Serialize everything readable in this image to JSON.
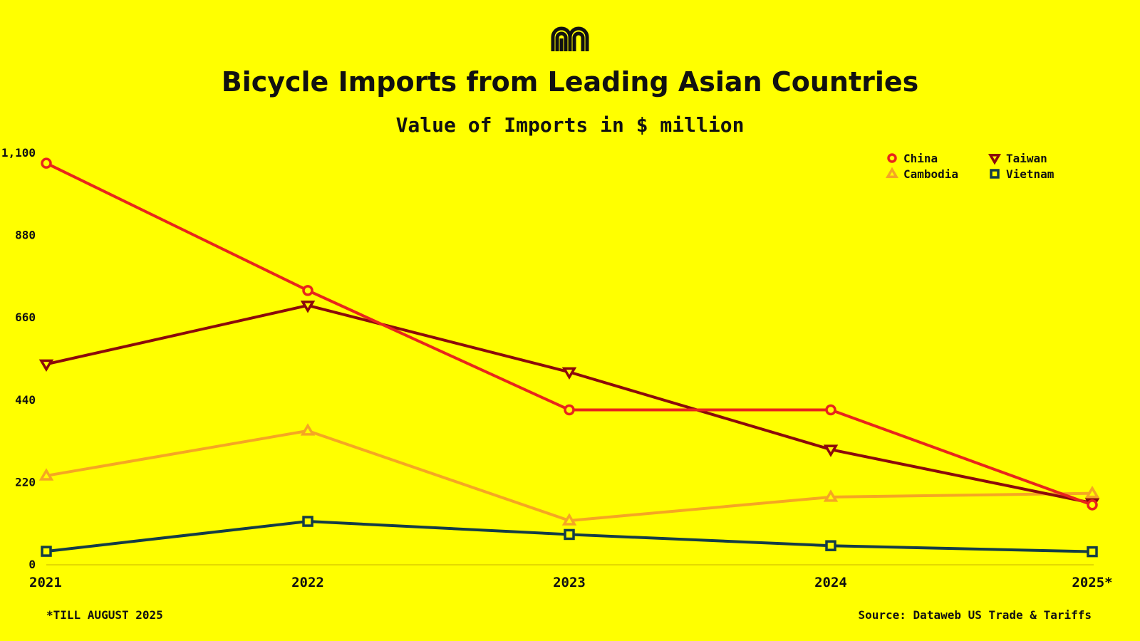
{
  "chart_data": {
    "type": "line",
    "title": "Bicycle Imports from Leading Asian Countries",
    "subtitle": "Value of Imports in $ million",
    "categories": [
      "2021",
      "2022",
      "2023",
      "2024",
      "2025*"
    ],
    "ylim": [
      0,
      1100
    ],
    "yticks": [
      0,
      220,
      440,
      660,
      880,
      1100
    ],
    "ytick_labels": [
      "0",
      "220",
      "440",
      "660",
      "880",
      "1,100"
    ],
    "grid": false,
    "legend_position": "top-right",
    "series": [
      {
        "name": "China",
        "color": "#E8251C",
        "marker": "circle",
        "values": [
          1073,
          733,
          414,
          414,
          160
        ]
      },
      {
        "name": "Taiwan",
        "color": "#8B0A0A",
        "marker": "triangle-down",
        "values": [
          536,
          693,
          515,
          308,
          165
        ]
      },
      {
        "name": "Cambodia",
        "color": "#F5A623",
        "marker": "triangle-up",
        "values": [
          238,
          358,
          118,
          181,
          191
        ]
      },
      {
        "name": "Vietnam",
        "color": "#143C46",
        "marker": "square",
        "values": [
          36,
          116,
          81,
          51,
          35
        ]
      }
    ],
    "footnote": "*TILL AUGUST 2025",
    "source": "Source: Dataweb US Trade & Tariffs"
  },
  "logo": {
    "icon": "arch-logo-icon",
    "color": "#111111"
  },
  "background": "#FFFF00"
}
